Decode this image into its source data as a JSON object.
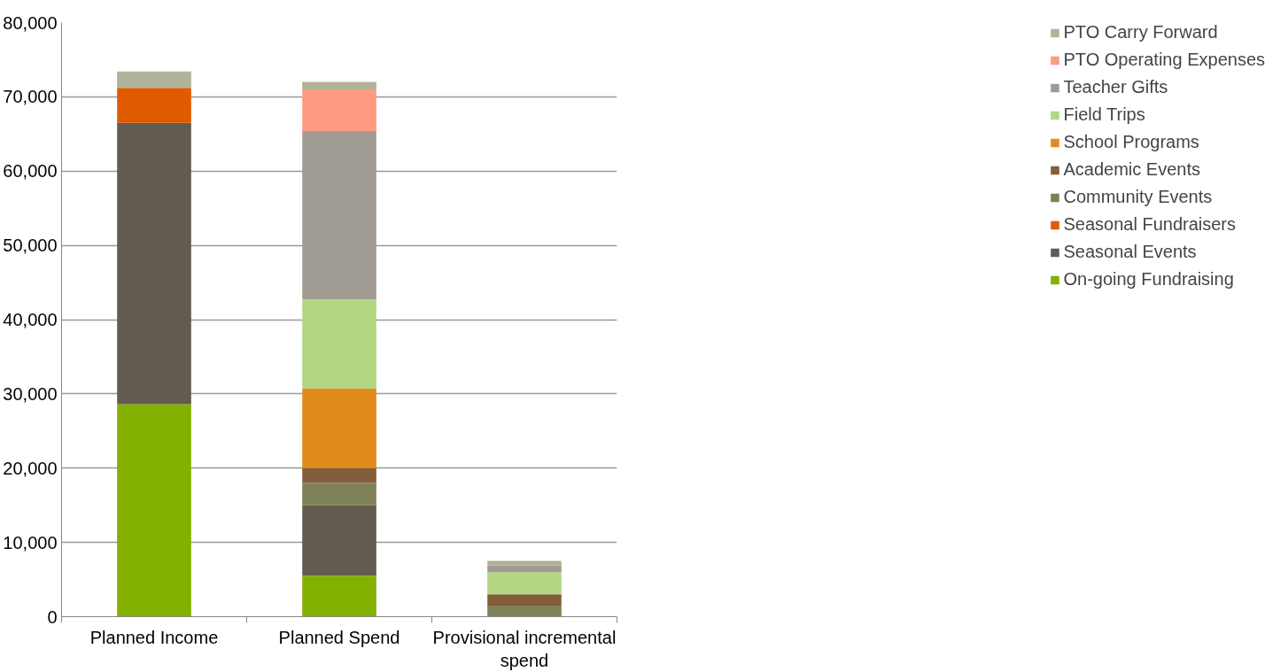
{
  "chart_data": {
    "type": "bar",
    "stacked": true,
    "categories": [
      "Planned Income",
      "Planned Spend",
      "Provisional incremental spend"
    ],
    "series": [
      {
        "name": "On-going Fundraising",
        "color": "#84b000",
        "values": [
          28600,
          5500,
          null
        ]
      },
      {
        "name": "Seasonal Events",
        "color": "#635b4f",
        "values": [
          37900,
          9500,
          null
        ]
      },
      {
        "name": "Seasonal Fundraisers",
        "color": "#e05a00",
        "values": [
          4700,
          null,
          null
        ]
      },
      {
        "name": "Community Events",
        "color": "#7e8058",
        "values": [
          null,
          3000,
          1500
        ]
      },
      {
        "name": "Academic Events",
        "color": "#845e3a",
        "values": [
          null,
          2000,
          1500
        ]
      },
      {
        "name": "School Programs",
        "color": "#e18b1e",
        "values": [
          null,
          10700,
          null
        ]
      },
      {
        "name": "Field Trips",
        "color": "#b3d685",
        "values": [
          null,
          12000,
          3000
        ]
      },
      {
        "name": "Teacher Gifts",
        "color": "#a19c93",
        "values": [
          null,
          22700,
          900
        ]
      },
      {
        "name": "PTO Operating Expenses",
        "color": "#ff9b80",
        "values": [
          null,
          5600,
          null
        ]
      },
      {
        "name": "PTO Carry Forward",
        "color": "#b0b29a",
        "values": [
          2200,
          1000,
          600
        ]
      }
    ],
    "ylim": [
      0,
      80000
    ],
    "yticks": [
      {
        "value": 0,
        "label": "0"
      },
      {
        "value": 10000,
        "label": "10,000"
      },
      {
        "value": 20000,
        "label": "20,000"
      },
      {
        "value": 30000,
        "label": "30,000"
      },
      {
        "value": 40000,
        "label": "40,000"
      },
      {
        "value": 50000,
        "label": "50,000"
      },
      {
        "value": 60000,
        "label": "60,000"
      },
      {
        "value": 70000,
        "label": "70,000"
      },
      {
        "value": 80000,
        "label": "80,000"
      }
    ],
    "grid": "y",
    "legend": "right"
  }
}
